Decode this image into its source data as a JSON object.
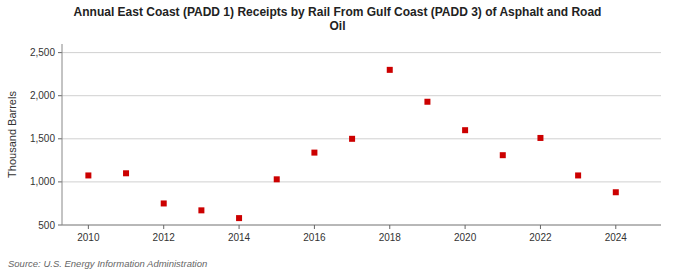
{
  "chart_data": {
    "type": "scatter",
    "title": "Annual East Coast (PADD 1) Receipts by Rail From Gulf Coast (PADD 3) of Asphalt and Road\nOil",
    "ylabel": "Thousand Barrels",
    "source": "Source: U.S. Energy Information Administration",
    "x": [
      2010,
      2011,
      2012,
      2013,
      2014,
      2015,
      2016,
      2017,
      2018,
      2019,
      2020,
      2021,
      2022,
      2023,
      2024
    ],
    "values": [
      1075,
      1100,
      750,
      670,
      580,
      1030,
      1340,
      1500,
      2300,
      1930,
      1600,
      1310,
      1510,
      1075,
      880
    ],
    "color": "#cc0000",
    "marker": "square",
    "grid": true,
    "xlim": [
      2009.3,
      2025.2
    ],
    "xticks": [
      2010,
      2012,
      2014,
      2016,
      2018,
      2020,
      2022,
      2024
    ],
    "ylim": [
      500,
      2600
    ],
    "yticks": [
      500,
      {
        "value": 1000,
        "label": "1,000"
      },
      {
        "value": 1500,
        "label": "1,500"
      },
      {
        "value": 2000,
        "label": "2,000"
      },
      {
        "value": 2500,
        "label": "2,500"
      }
    ]
  }
}
